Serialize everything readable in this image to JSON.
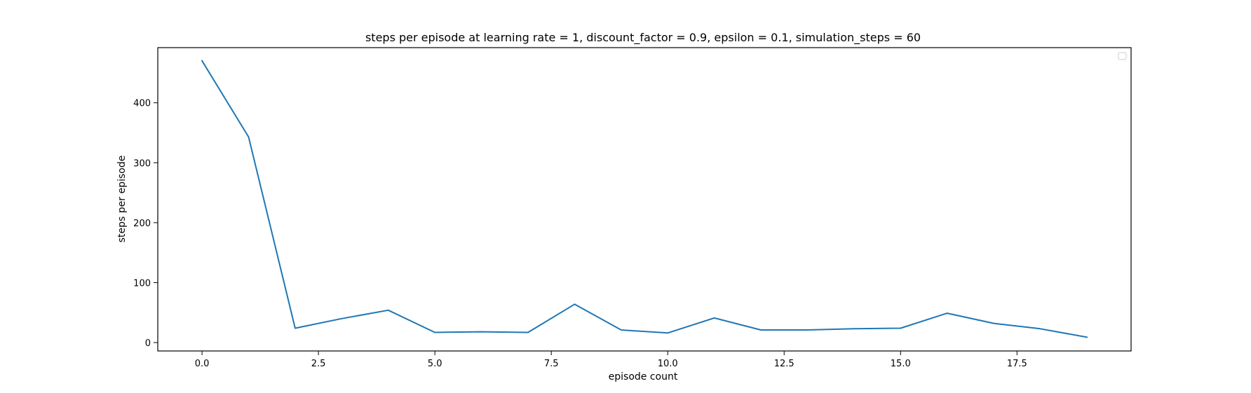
{
  "chart_data": {
    "type": "line",
    "title": "steps per episode at learning rate = 1, discount_factor = 0.9, epsilon = 0.1, simulation_steps = 60",
    "xlabel": "episode count",
    "ylabel": "steps per episode",
    "xlim": [
      -0.95,
      19.95
    ],
    "ylim": [
      -14,
      492
    ],
    "xticks": [
      0.0,
      2.5,
      5.0,
      7.5,
      10.0,
      12.5,
      15.0,
      17.5
    ],
    "xtick_labels": [
      "0.0",
      "2.5",
      "5.0",
      "7.5",
      "10.0",
      "12.5",
      "15.0",
      "17.5"
    ],
    "yticks": [
      0,
      100,
      200,
      300,
      400
    ],
    "ytick_labels": [
      "0",
      "100",
      "200",
      "300",
      "400"
    ],
    "grid": false,
    "legend": "top-right (empty)",
    "series": [
      {
        "color": "#1f77b4",
        "x": [
          0,
          1,
          2,
          3,
          4,
          5,
          6,
          7,
          8,
          9,
          10,
          11,
          12,
          13,
          14,
          15,
          16,
          17,
          18,
          19
        ],
        "y": [
          470,
          343,
          24,
          40,
          54,
          17,
          18,
          17,
          64,
          21,
          16,
          41,
          21,
          21,
          23,
          24,
          49,
          32,
          23,
          9
        ]
      }
    ]
  }
}
